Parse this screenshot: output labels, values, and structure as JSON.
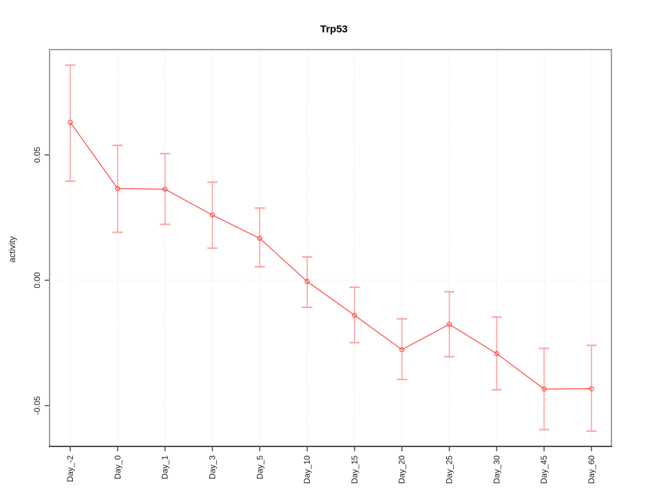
{
  "chart_data": {
    "type": "line",
    "title": "Trp53",
    "xlabel": "",
    "ylabel": "activity",
    "categories": [
      "Day_-2",
      "Day_0",
      "Day_1",
      "Day_3",
      "Day_5",
      "Day_10",
      "Day_15",
      "Day_20",
      "Day_25",
      "Day_30",
      "Day_45",
      "Day_60"
    ],
    "series": [
      {
        "name": "activity",
        "marker": "open-circle",
        "values": [
          0.063,
          0.0366,
          0.0363,
          0.026,
          0.0167,
          -0.0005,
          -0.014,
          -0.0277,
          -0.0176,
          -0.0293,
          -0.0434,
          -0.0433
        ],
        "upper": [
          0.0858,
          0.0538,
          0.0505,
          0.0391,
          0.0288,
          0.0093,
          -0.0028,
          -0.0154,
          -0.0046,
          -0.0147,
          -0.0272,
          -0.026
        ],
        "lower": [
          0.0395,
          0.0191,
          0.0223,
          0.0128,
          0.0054,
          -0.0108,
          -0.0249,
          -0.0396,
          -0.0305,
          -0.0437,
          -0.0596,
          -0.0602
        ]
      }
    ],
    "ylim": [
      -0.0663,
      0.092
    ],
    "yticks": [
      {
        "value": 0.05,
        "label": "0.05"
      },
      {
        "value": 0.0,
        "label": "0.00"
      },
      {
        "value": -0.05,
        "label": "-0.05"
      }
    ],
    "grid": {
      "vertical_at_categories": true,
      "horizontal_at_zero": true,
      "style": "dotted"
    },
    "legend": "none",
    "colors": {
      "line": "#fa4f4b",
      "errorbar": "#fa4f4b",
      "grid": "#d8d8d8",
      "box": "#9e9e9e",
      "axis": "#4b4b4b",
      "text": "#1c1c1c",
      "background": "#ffffff"
    }
  }
}
